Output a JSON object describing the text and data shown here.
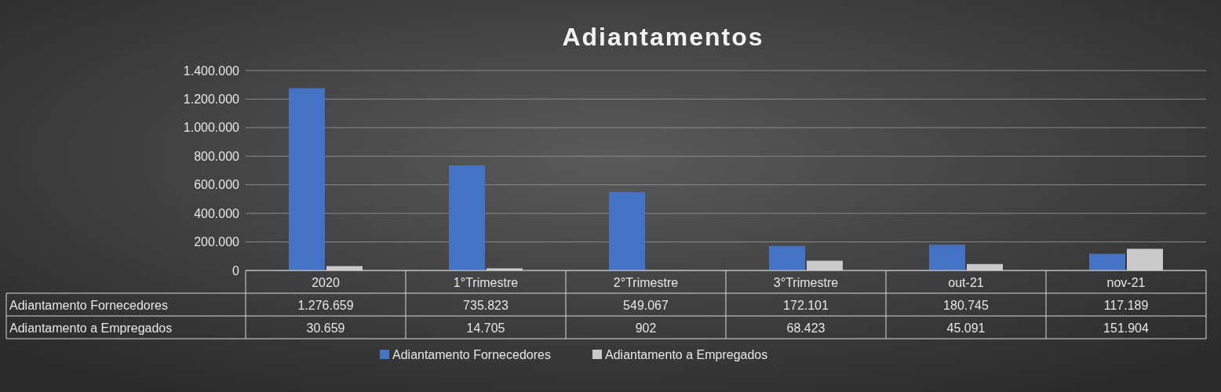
{
  "chart_data": {
    "type": "bar",
    "title": "Adiantamentos",
    "categories": [
      "2020",
      "1°Trimestre",
      "2°Trimestre",
      "3°Trimestre",
      "out-21",
      "nov-21"
    ],
    "series": [
      {
        "name": "Adiantamento Fornecedores",
        "color": "#4472c4",
        "values": [
          1276659,
          735823,
          549067,
          172101,
          180745,
          117189
        ],
        "value_labels": [
          "1.276.659",
          "735.823",
          "549.067",
          "172.101",
          "180.745",
          "117.189"
        ]
      },
      {
        "name": "Adiantamento a Empregados",
        "color": "#c9c9c9",
        "values": [
          30659,
          14705,
          902,
          68423,
          45091,
          151904
        ],
        "value_labels": [
          "30.659",
          "14.705",
          "902",
          "68.423",
          "45.091",
          "151.904"
        ]
      }
    ],
    "ylim": [
      0,
      1400000
    ],
    "yticks": [
      {
        "value": 0,
        "label": "0"
      },
      {
        "value": 200000,
        "label": "200.000"
      },
      {
        "value": 400000,
        "label": "400.000"
      },
      {
        "value": 600000,
        "label": "600.000"
      },
      {
        "value": 800000,
        "label": "800.000"
      },
      {
        "value": 1000000,
        "label": "1.000.000"
      },
      {
        "value": 1200000,
        "label": "1.200.000"
      },
      {
        "value": 1400000,
        "label": "1.400.000"
      }
    ],
    "grid": "y",
    "legend": "bottom"
  }
}
